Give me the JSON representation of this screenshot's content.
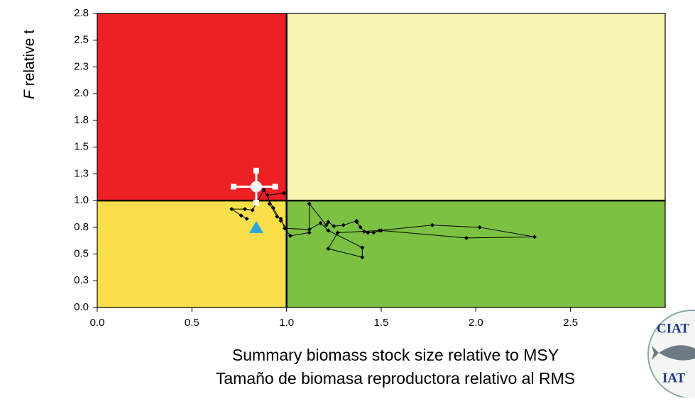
{
  "chart_data": {
    "type": "line",
    "x_label": [
      "Summary biomass stock size relative to MSY",
      "Tamaño de biomasa reproductora relativo al RMS"
    ],
    "y_label": {
      "symbol": "F",
      "text": "relative t"
    },
    "xlim": [
      0,
      3
    ],
    "ylim": [
      0,
      2.75
    ],
    "xticks": [
      {
        "value": 0,
        "label": "0.0"
      },
      0.5,
      {
        "value": 1,
        "label": "1.0"
      },
      1.5,
      {
        "value": 2,
        "label": "2.0"
      },
      2.5
    ],
    "yticks": [
      {
        "value": 0,
        "label": "0.0"
      },
      {
        "value": 0.25,
        "label": "0.3"
      },
      0.5,
      {
        "value": 0.75,
        "label": "0.8"
      },
      {
        "value": 1,
        "label": "1.0"
      },
      {
        "value": 1.25,
        "label": "1.3"
      },
      1.5,
      {
        "value": 1.75,
        "label": "1.8"
      },
      {
        "value": 2,
        "label": "2.0"
      },
      {
        "value": 2.25,
        "label": "2.3"
      },
      2.5,
      {
        "value": 2.75,
        "label": "2.8"
      }
    ],
    "reference_lines": {
      "x": 1,
      "y": 1
    },
    "quadrant_colors": {
      "top_left": "#ed2024",
      "top_right": "#fbf5b5",
      "bottom_left": "#f9e04b",
      "bottom_right": "#7cc142"
    },
    "x": [
      0.985,
      0.9,
      0.91,
      0.95,
      0.97,
      0.99,
      1.02,
      1.12,
      1.12,
      1.21,
      1.22,
      1.25,
      1.3,
      1.37,
      1.37,
      1.39,
      1.41,
      1.43,
      1.46,
      1.49,
      1.77,
      2.02,
      2.31,
      1.95,
      1.5,
      1.27,
      1.22,
      1.4,
      1.4,
      1.22,
      1.18,
      1.12,
      1.0,
      0.97,
      0.93,
      0.88,
      0.82,
      0.78,
      0.71,
      0.76,
      0.79
    ],
    "series": [
      {
        "color": "#000000",
        "values": [
          1.07,
          1.05,
          0.97,
          0.85,
          0.83,
          0.74,
          0.67,
          0.7,
          0.97,
          0.77,
          0.8,
          0.76,
          0.77,
          0.81,
          0.8,
          0.75,
          0.71,
          0.7,
          0.7,
          0.72,
          0.77,
          0.75,
          0.66,
          0.65,
          0.72,
          0.7,
          0.55,
          0.47,
          0.56,
          0.72,
          0.79,
          0.73,
          0.74,
          0.81,
          0.93,
          1.1,
          0.91,
          0.92,
          0.92,
          0.86,
          0.83
        ]
      }
    ],
    "current_point": {
      "x": 0.84,
      "y": 1.13,
      "x_err": [
        0.72,
        0.94
      ],
      "y_err": [
        0.98,
        1.28
      ],
      "color": "#ffffff"
    },
    "reference_point": {
      "x": 0.84,
      "y": 0.75,
      "color": "#2aa7df"
    },
    "logo": {
      "top": "CIAT",
      "bottom": "IAT"
    }
  }
}
